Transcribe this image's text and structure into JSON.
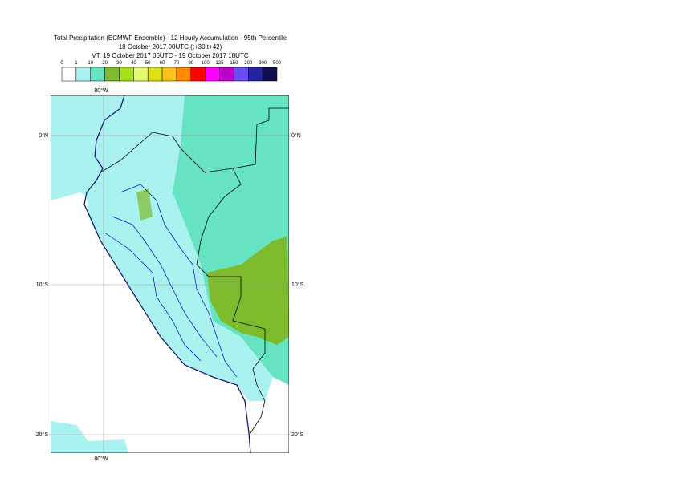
{
  "header": {
    "title_lines": [
      "Total Precipitation (ECMWF Ensemble) - 12 Hourly Accumulation - 95th Percentile",
      "18 October 2017 00UTC (t+30,t+42)",
      "VT: 19 October 2017 06UTC - 19 October 2017 18UTC"
    ]
  },
  "legend": {
    "labels": [
      0,
      1,
      10,
      20,
      30,
      40,
      50,
      60,
      70,
      80,
      100,
      125,
      150,
      200,
      300,
      500
    ],
    "colors": [
      "#ffffff",
      "#aaf2f0",
      "#66e3c0",
      "#7dbb2c",
      "#a8e01a",
      "#e4f870",
      "#e0e01a",
      "#ffc21a",
      "#ff8a00",
      "#ff0000",
      "#ff00ff",
      "#b800c8",
      "#6a4cf0",
      "#2424a0",
      "#101050"
    ]
  },
  "map": {
    "lon_label_top": "80°W",
    "lon_label_bottom": "80°W",
    "lat_labels": [
      "0°N",
      "10°S",
      "20°S"
    ]
  }
}
